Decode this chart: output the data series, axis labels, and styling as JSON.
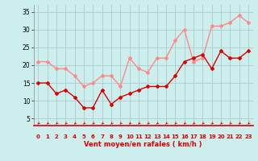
{
  "xlabel": "Vent moyen/en rafales ( km/h )",
  "bg_color": "#cceeed",
  "grid_color": "#aacccc",
  "ylim": [
    3,
    37
  ],
  "xlim": [
    -0.5,
    23.5
  ],
  "yticks": [
    5,
    10,
    15,
    20,
    25,
    30,
    35
  ],
  "xticks": [
    0,
    1,
    2,
    3,
    4,
    5,
    6,
    7,
    8,
    9,
    10,
    11,
    12,
    13,
    14,
    15,
    16,
    17,
    18,
    19,
    20,
    21,
    22,
    23
  ],
  "avg_color": "#dd0000",
  "gust_color": "#ff8888",
  "avg_values": [
    15,
    15,
    12,
    13,
    11,
    8,
    8,
    13,
    9,
    11,
    12,
    13,
    14,
    14,
    14,
    17,
    21,
    22,
    23,
    19,
    24,
    22,
    22,
    24
  ],
  "gust_values": [
    21,
    21,
    19,
    19,
    17,
    14,
    15,
    17,
    17,
    14,
    22,
    19,
    18,
    22,
    22,
    27,
    30,
    21,
    22,
    31,
    31,
    32,
    34,
    32
  ]
}
